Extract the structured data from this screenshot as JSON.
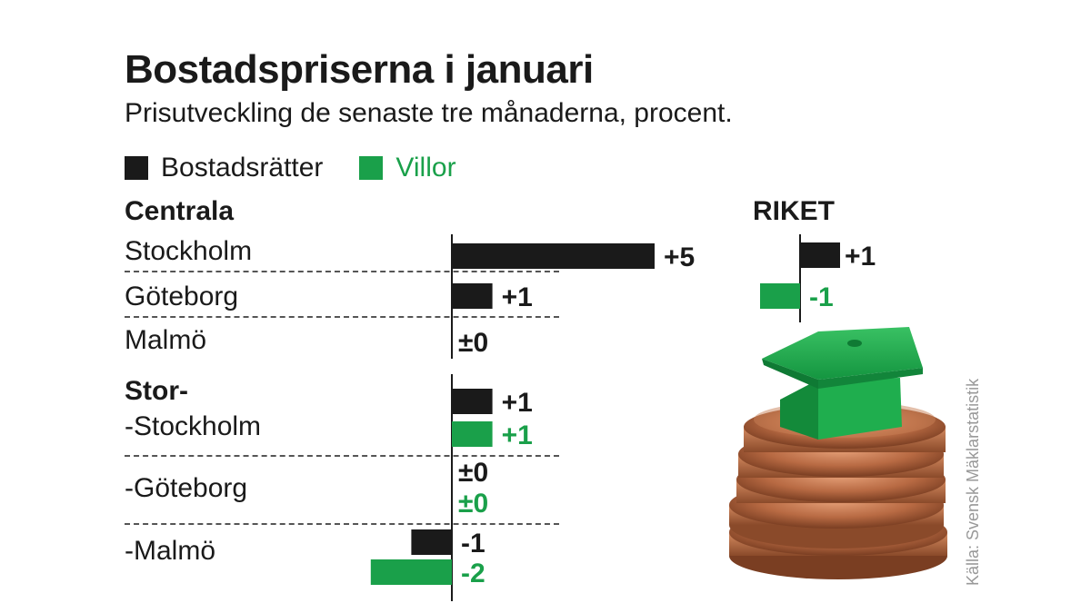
{
  "title": "Bostadspriserna i januari",
  "subtitle": "Prisutveckling de senaste tre månaderna, procent.",
  "source": "Källa: Svensk Mäklarstatistik",
  "colors": {
    "bostadsratter": "#1a1a1a",
    "villor": "#1aa04a"
  },
  "chart_data": [
    {
      "type": "bar",
      "orientation": "horizontal",
      "legend": [
        "Bostadsrätter",
        "Villor"
      ],
      "groups": [
        {
          "name": "Centrala",
          "rows": [
            {
              "label": "Stockholm",
              "bostadsratter": 5,
              "bostadsratter_label": "+5"
            },
            {
              "label": "Göteborg",
              "bostadsratter": 1,
              "bostadsratter_label": "+1"
            },
            {
              "label": "Malmö",
              "bostadsratter": 0,
              "bostadsratter_label": "±0"
            }
          ]
        },
        {
          "name": "Stor-",
          "rows": [
            {
              "label": "-Stockholm",
              "bostadsratter": 1,
              "bostadsratter_label": "+1",
              "villor": 1,
              "villor_label": "+1"
            },
            {
              "label": "-Göteborg",
              "bostadsratter": 0,
              "bostadsratter_label": "±0",
              "villor": 0,
              "villor_label": "±0"
            },
            {
              "label": "-Malmö",
              "bostadsratter": -1,
              "bostadsratter_label": "-1",
              "villor": -2,
              "villor_label": "-2"
            }
          ]
        }
      ]
    },
    {
      "type": "bar",
      "orientation": "horizontal",
      "title": "RIKET",
      "bostadsratter": 1,
      "bostadsratter_label": "+1",
      "villor": -1,
      "villor_label": "-1"
    }
  ]
}
